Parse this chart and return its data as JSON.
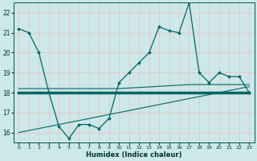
{
  "xlabel": "Humidex (Indice chaleur)",
  "background_color": "#cce8e8",
  "grid_color": "#ffb0b0",
  "line_color": "#006666",
  "xlim": [
    -0.5,
    23.5
  ],
  "ylim": [
    15.5,
    22.5
  ],
  "yticks": [
    16,
    17,
    18,
    19,
    20,
    21,
    22
  ],
  "xticks": [
    0,
    1,
    2,
    3,
    4,
    5,
    6,
    7,
    8,
    9,
    10,
    11,
    12,
    13,
    14,
    15,
    16,
    17,
    18,
    19,
    20,
    21,
    22,
    23
  ],
  "series1_x": [
    0,
    1,
    2,
    3,
    4,
    5,
    6,
    7,
    8,
    9,
    10,
    11,
    12,
    13,
    14,
    15,
    16,
    17,
    18,
    19,
    20,
    21,
    22,
    23
  ],
  "series1_y": [
    21.2,
    21.0,
    20.0,
    18.0,
    16.3,
    15.7,
    16.4,
    16.4,
    16.2,
    16.7,
    18.5,
    19.0,
    19.5,
    20.0,
    21.3,
    21.1,
    21.0,
    22.5,
    19.0,
    18.5,
    19.0,
    18.8,
    18.8,
    18.0
  ],
  "series2_x": [
    0,
    23
  ],
  "series2_y": [
    18.0,
    18.0
  ],
  "series3_x": [
    0,
    23
  ],
  "series3_y": [
    16.0,
    18.3
  ],
  "series4_x": [
    0,
    10,
    17,
    23
  ],
  "series4_y": [
    18.2,
    18.2,
    18.4,
    18.4
  ]
}
